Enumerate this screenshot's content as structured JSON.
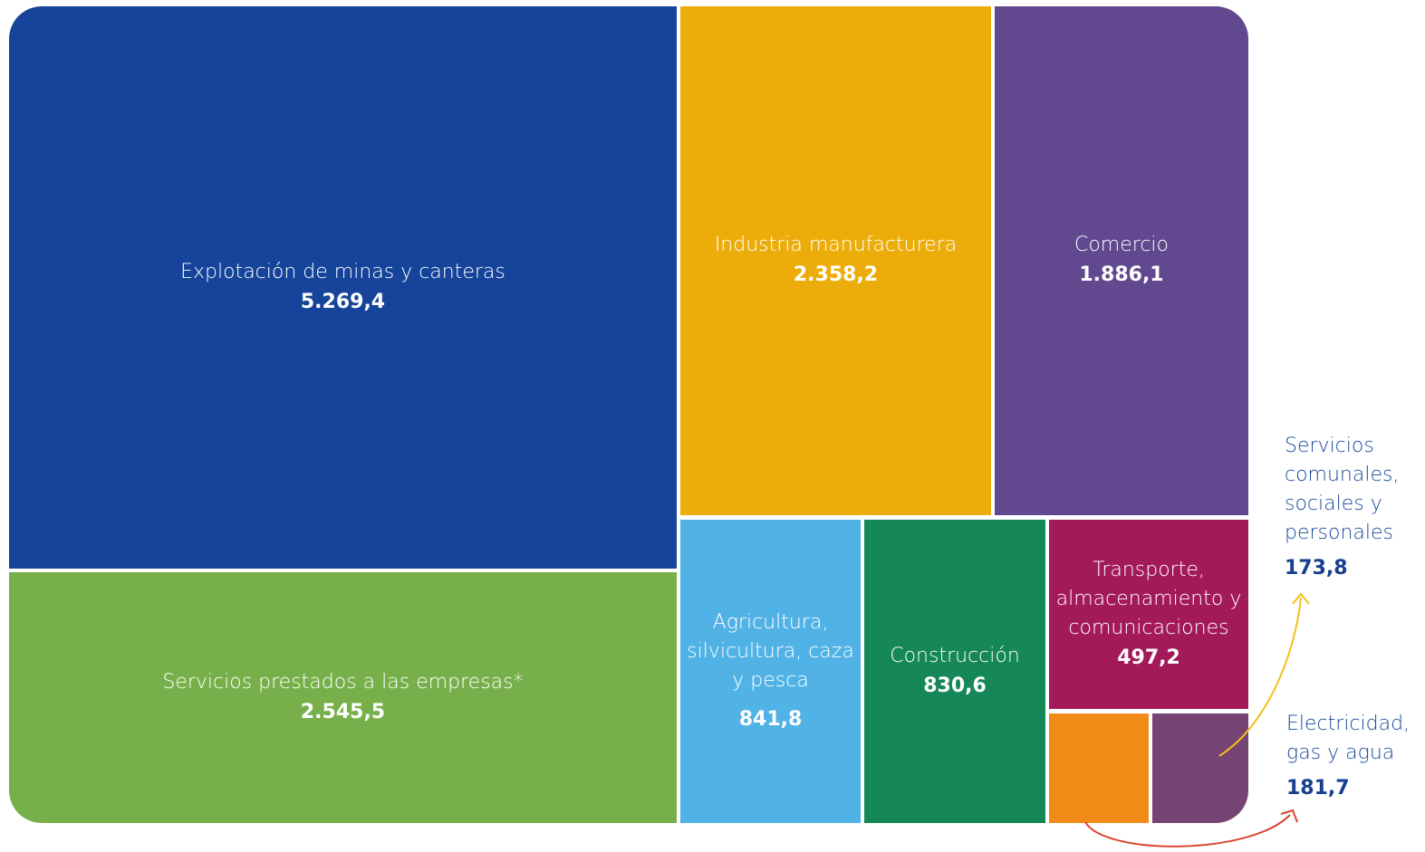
{
  "chart_data": {
    "type": "treemap",
    "categories": [
      "Explotación de minas y canteras",
      "Servicios prestados a las empresas*",
      "Industria manufacturera",
      "Comercio",
      "Agricultura, silvicultura, caza y pesca",
      "Construcción",
      "Transporte, almacenamiento y comunicaciones",
      "Electricidad, gas y agua",
      "Servicios comunales, sociales y personales"
    ],
    "values": [
      5269.4,
      2545.5,
      2358.2,
      1886.1,
      841.8,
      830.6,
      497.2,
      181.7,
      173.8
    ],
    "value_labels": [
      "5.269,4",
      "2.545,5",
      "2.358,2",
      "1.886,1",
      "841,8",
      "830,6",
      "497,2",
      "181,7",
      "173,8"
    ],
    "colors": [
      "#15449a",
      "#77b04a",
      "#ecad0b",
      "#61488f",
      "#51b2e5",
      "#168757",
      "#a31a5a",
      "#f18b17",
      "#764474"
    ]
  }
}
